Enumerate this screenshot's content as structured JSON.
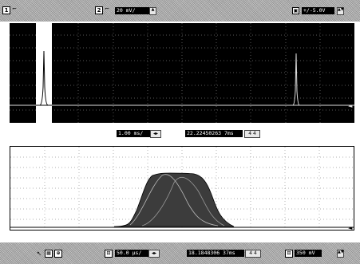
{
  "top_toolbar": {
    "ch1_number": "1",
    "ch2_number": "2",
    "ch2_scale": "20 mV/",
    "range_value": "+/-5.0V"
  },
  "middle_toolbar": {
    "timebase_value": "1.00 ms/",
    "position_value": "22.22450263 7ms",
    "nav_value": "4 4"
  },
  "bottom_toolbar": {
    "timebase_value": "50.0 µs/",
    "position_value": "18.1848306 37ms",
    "nav_value": "4 4",
    "ch_value": "350 mV"
  },
  "icons": {
    "trigger": "trigger-marker-icon",
    "scroll_up": "up-arrow-icon",
    "scroll_down": "down-arrow-icon"
  }
}
